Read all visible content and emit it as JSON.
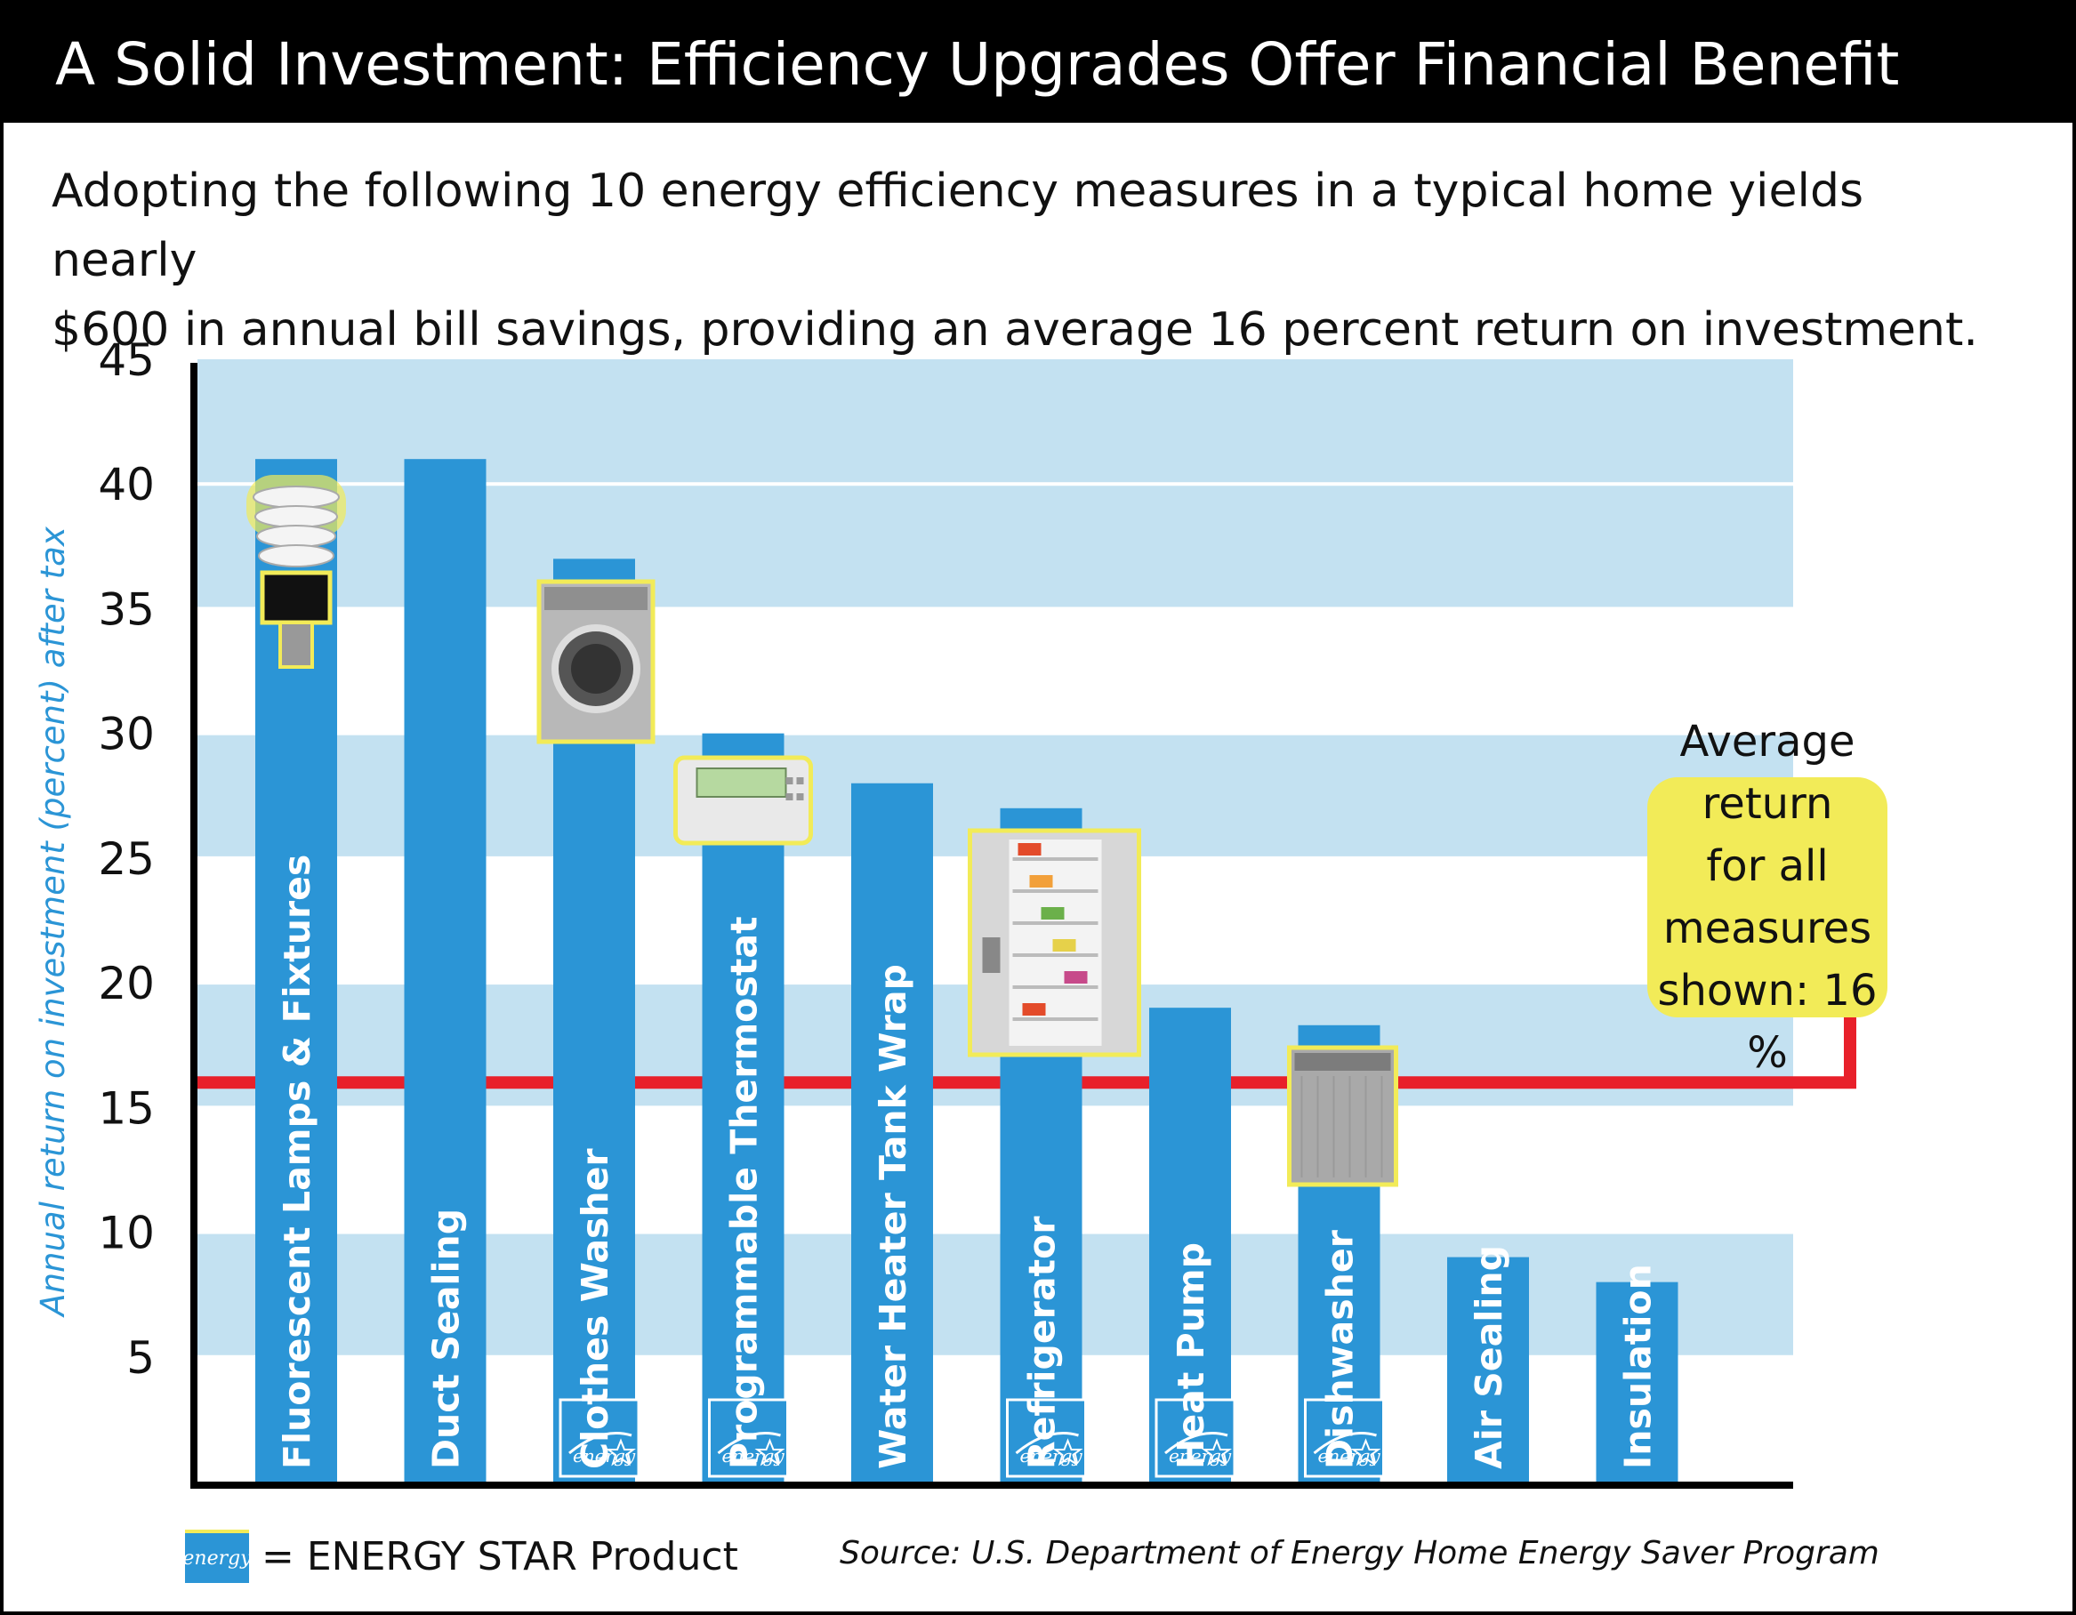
{
  "title": "A Solid Investment: Efficiency Upgrades Offer Financial Benefit",
  "subtitle": "Adopting the following 10 energy efficiency measures in a typical home yields nearly\n$600 in annual bill savings, providing an average 16 percent return on investment.",
  "average_box": "Average return\nfor all measures\nshown: 16 %",
  "legend": {
    "text": "= ENERGY STAR Product",
    "icon": "energy-star-icon"
  },
  "source": "Source: U.S. Department of Energy Home Energy Saver Program",
  "colors": {
    "bar": "#2b95d6",
    "band": "#c3e1f1",
    "average_line": "#e8202a",
    "highlight": "#f2eb58"
  },
  "chart_data": {
    "type": "bar",
    "ylabel": "Annual return on investment (percent) after tax",
    "ylim": [
      0,
      45
    ],
    "yticks": [
      5,
      10,
      15,
      20,
      25,
      30,
      35,
      40,
      45
    ],
    "categories": [
      "Fluorescent Lamps & Fixtures",
      "Duct Sealing",
      "Clothes Washer",
      "Programmable Thermostat",
      "Water Heater Tank Wrap",
      "Refrigerator",
      "Heat Pump",
      "Dishwasher",
      "Air Sealing",
      "Insulation"
    ],
    "values": [
      41,
      41,
      37,
      30,
      28,
      27,
      19,
      18.3,
      9,
      8
    ],
    "energy_star": [
      false,
      false,
      true,
      true,
      false,
      true,
      true,
      true,
      false,
      false
    ],
    "product_icons": [
      "cfl-bulb-icon",
      null,
      "washer-icon",
      "thermostat-icon",
      null,
      "refrigerator-icon",
      null,
      "dishwasher-icon",
      null,
      null
    ],
    "average": 16,
    "average_label": "16 %"
  }
}
